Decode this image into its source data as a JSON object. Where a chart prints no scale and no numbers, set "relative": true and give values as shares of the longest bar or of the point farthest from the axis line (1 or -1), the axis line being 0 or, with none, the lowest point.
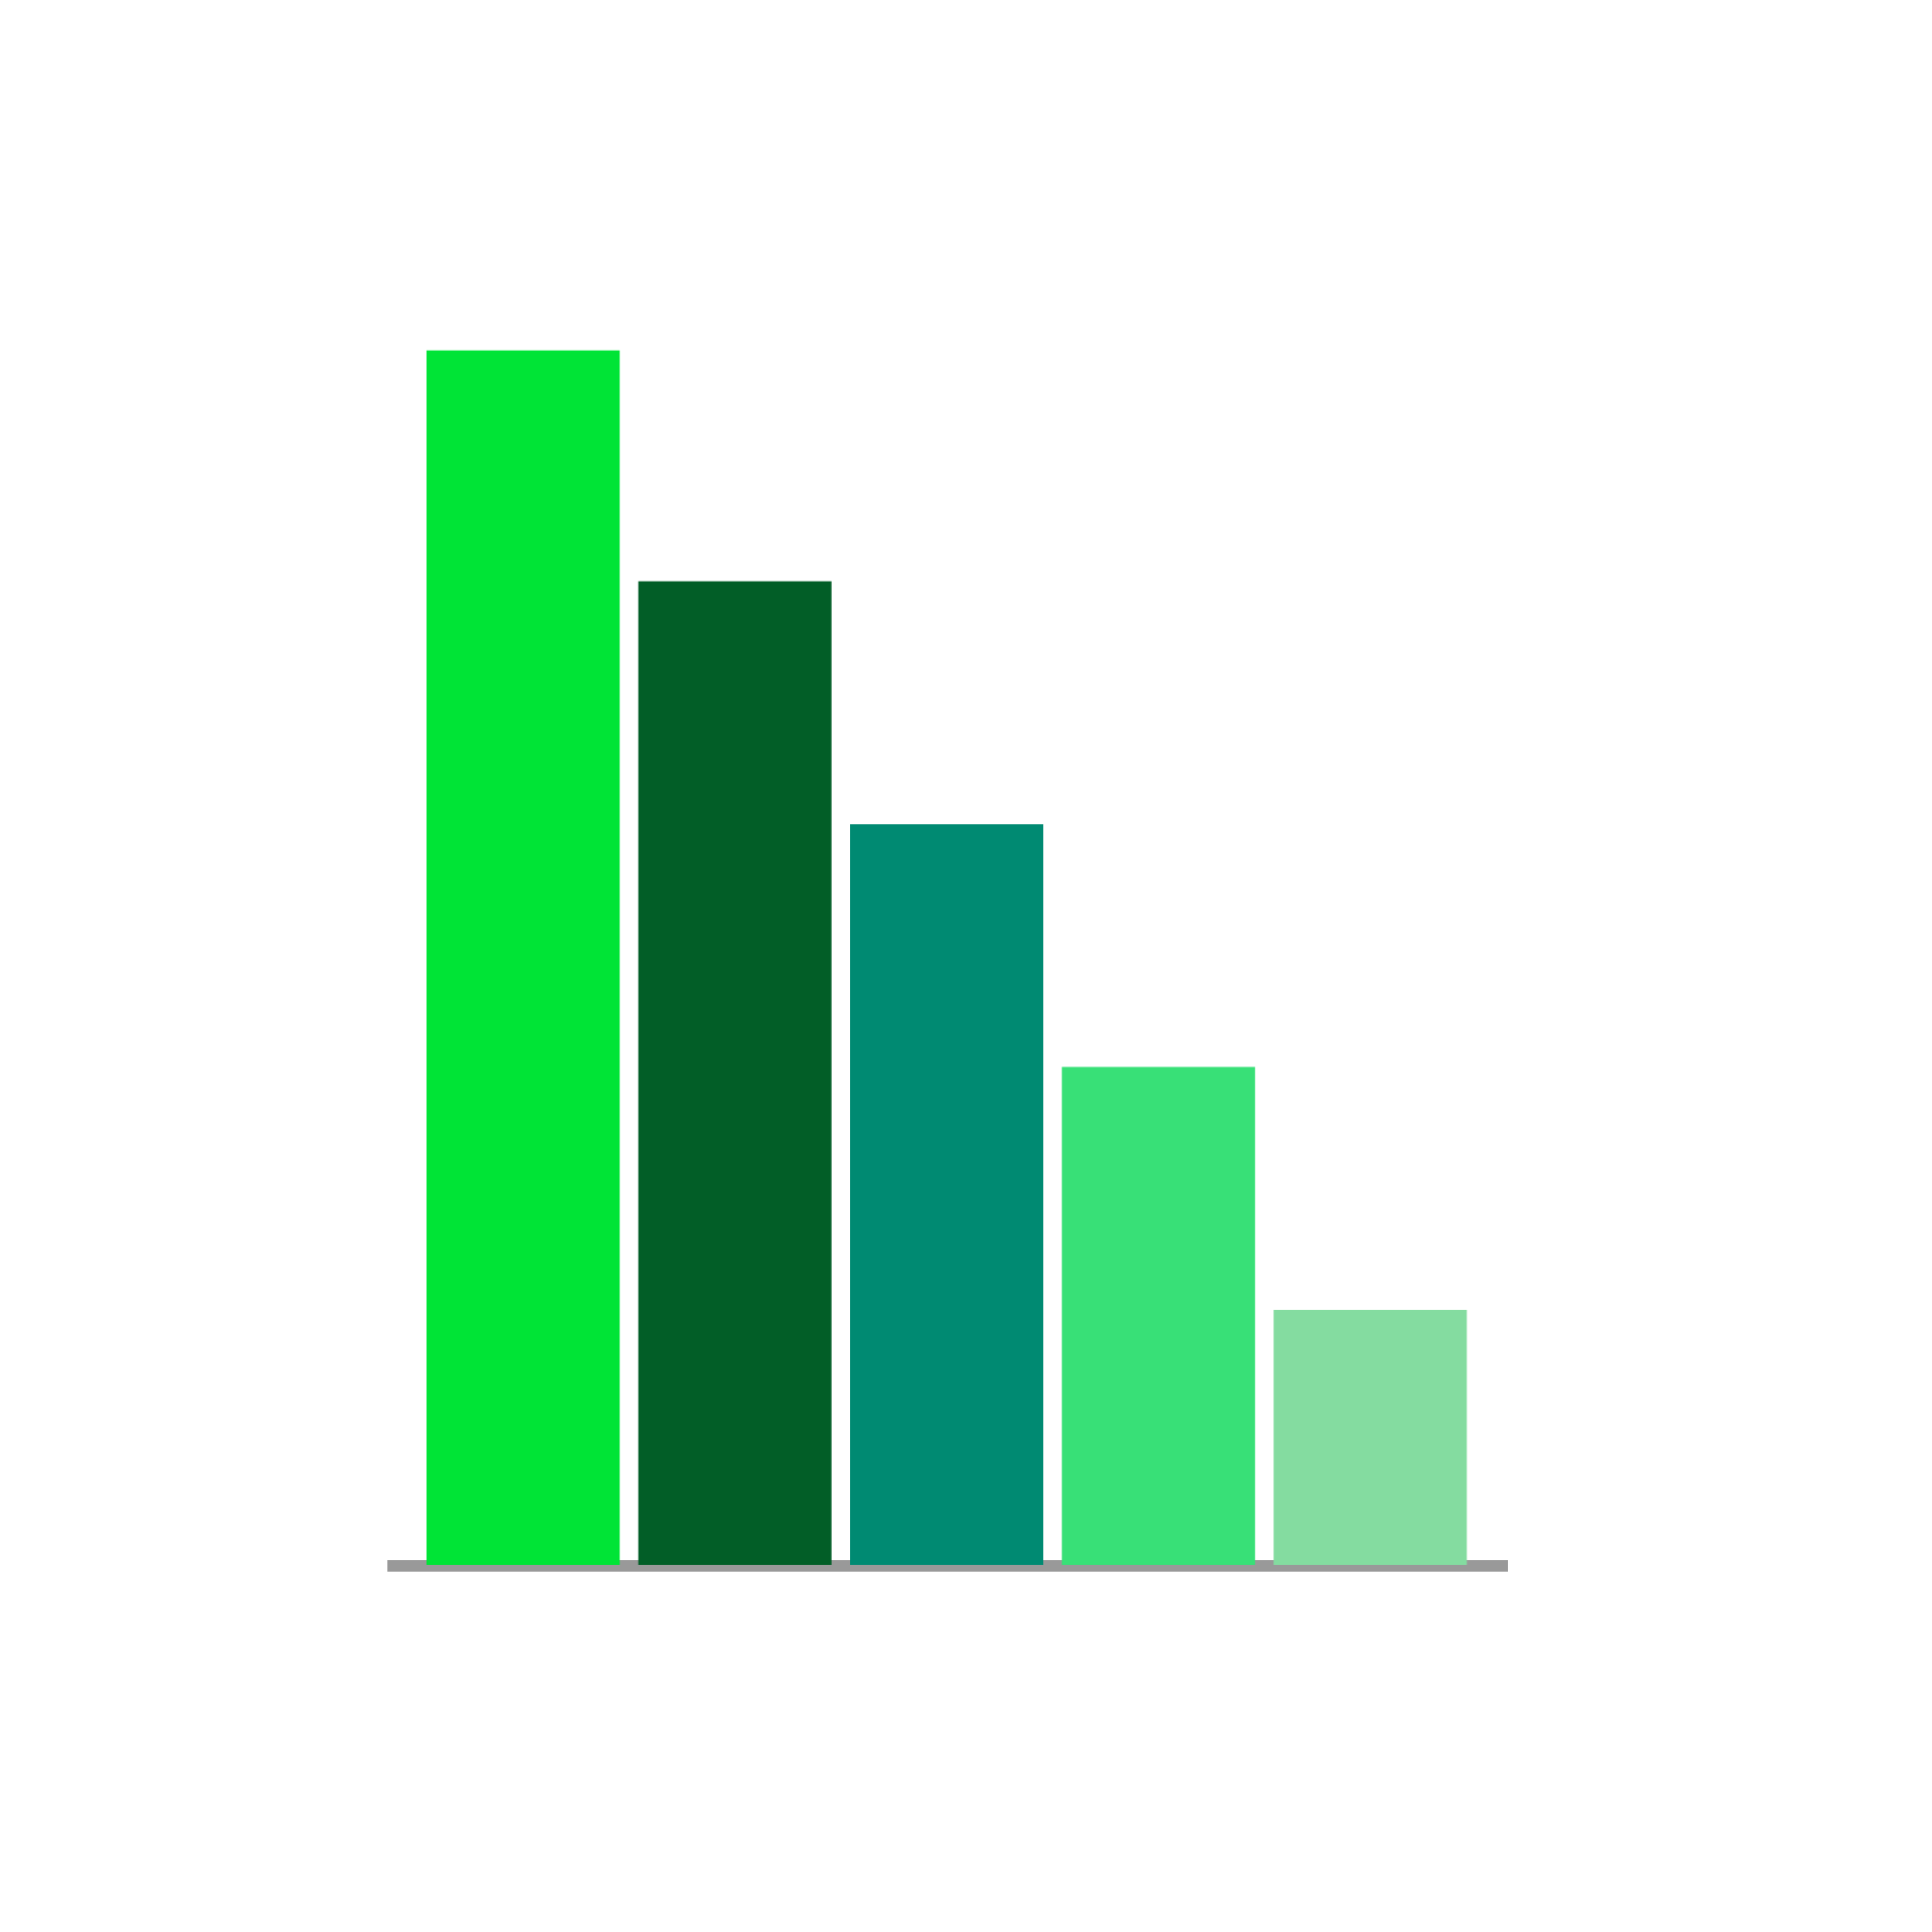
{
  "chart_data": {
    "type": "bar",
    "relative": true,
    "categories": [
      null,
      null,
      null,
      null,
      null
    ],
    "values": [
      1,
      0.81,
      0.61,
      0.41,
      0.21
    ],
    "colors": [
      "#00e436",
      "#025e27",
      "#008a72",
      "#38e077",
      "#84dca0"
    ],
    "tick_labels": false,
    "grid": false
  }
}
